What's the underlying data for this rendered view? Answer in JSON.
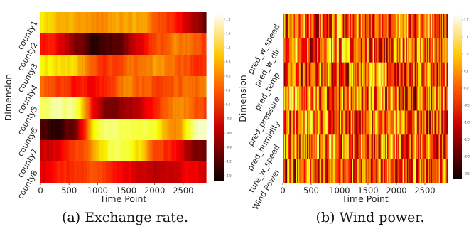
{
  "chart_data": [
    {
      "type": "heatmap",
      "caption": "(a) Exchange rate.",
      "xlabel": "Time Point",
      "ylabel": "Dimension",
      "xticks": [
        0,
        500,
        1000,
        1500,
        2000,
        2500
      ],
      "xlim": [
        0,
        2900
      ],
      "rows": [
        "county1",
        "county2",
        "county3",
        "county4",
        "county5",
        "county6",
        "county7",
        "county8"
      ],
      "colormap": "hot",
      "colorbar_ticks": [
        "1.8",
        "1.5",
        "1.2",
        "0.9",
        "0.6",
        "0.3",
        "0.0",
        "-0.3",
        "-0.6",
        "-0.9",
        "-1.2",
        "-1.5"
      ],
      "row_profiles": [
        [
          0.7,
          0.65,
          0.6,
          0.55,
          0.6,
          0.65,
          0.6,
          0.5,
          0.4,
          0.25,
          0.1
        ],
        [
          0.4,
          0.35,
          0.15,
          0.05,
          0.1,
          0.2,
          0.4,
          0.5,
          0.55,
          0.5,
          0.45
        ],
        [
          0.75,
          0.7,
          0.65,
          0.5,
          0.45,
          0.5,
          0.55,
          0.6,
          0.5,
          0.45,
          0.4
        ],
        [
          0.5,
          0.45,
          0.4,
          0.35,
          0.45,
          0.55,
          0.5,
          0.45,
          0.5,
          0.55,
          0.5
        ],
        [
          0.85,
          0.9,
          0.85,
          0.3,
          0.15,
          0.2,
          0.35,
          0.45,
          0.6,
          0.5,
          0.4
        ],
        [
          0.1,
          0.08,
          0.2,
          0.75,
          0.9,
          0.85,
          0.8,
          0.75,
          0.5,
          0.85,
          0.95
        ],
        [
          0.3,
          0.35,
          0.45,
          0.6,
          0.85,
          0.8,
          0.65,
          0.45,
          0.35,
          0.2,
          0.15
        ],
        [
          0.35,
          0.4,
          0.45,
          0.5,
          0.4,
          0.35,
          0.3,
          0.25,
          0.3,
          0.35,
          0.3
        ]
      ]
    },
    {
      "type": "heatmap",
      "caption": "(b) Wind power.",
      "xlabel": "Time Point",
      "ylabel": "Dimension",
      "xticks": [
        0,
        500,
        1000,
        1500,
        2000,
        2500
      ],
      "xlim": [
        0,
        2900
      ],
      "rows": [
        "pred_w_speed",
        "pred_w_dir",
        "pred_temp",
        "pred_pressure",
        "pred_humidity",
        "ture_w_speed",
        "Wind Power"
      ],
      "colormap": "hot",
      "colorbar_ticks": [
        "2.0",
        "1.5",
        "1.0",
        "0.5",
        "0.0",
        "-0.5",
        "-1.0",
        "-1.5",
        "-2.0",
        "-2.5"
      ],
      "row_profiles": [
        [
          0.5,
          0.55,
          0.45,
          0.5,
          0.55,
          0.5,
          0.45,
          0.5,
          0.5,
          0.55,
          0.5
        ],
        [
          0.55,
          0.5,
          0.45,
          0.55,
          0.6,
          0.5,
          0.45,
          0.5,
          0.55,
          0.5,
          0.5
        ],
        [
          0.45,
          0.4,
          0.45,
          0.5,
          0.45,
          0.5,
          0.55,
          0.45,
          0.5,
          0.45,
          0.5
        ],
        [
          0.6,
          0.65,
          0.55,
          0.5,
          0.45,
          0.5,
          0.55,
          0.45,
          0.4,
          0.5,
          0.55
        ],
        [
          0.45,
          0.5,
          0.55,
          0.5,
          0.45,
          0.4,
          0.5,
          0.55,
          0.5,
          0.45,
          0.5
        ],
        [
          0.5,
          0.45,
          0.5,
          0.55,
          0.5,
          0.45,
          0.5,
          0.5,
          0.45,
          0.5,
          0.5
        ],
        [
          0.45,
          0.5,
          0.45,
          0.5,
          0.55,
          0.5,
          0.45,
          0.5,
          0.5,
          0.45,
          0.5
        ]
      ]
    }
  ]
}
